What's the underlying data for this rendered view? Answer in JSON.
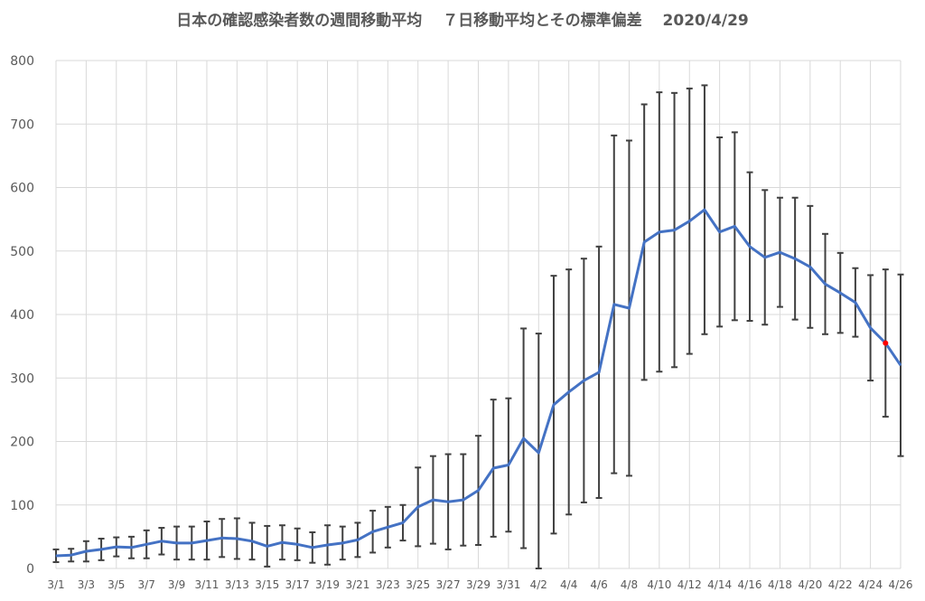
{
  "chart_data": {
    "type": "line",
    "title": "日本の確認感染者数の週間移動平均　 ７日移動平均とその標準偏差　 2020/4/29",
    "xlabel": "",
    "ylabel": "",
    "ylim": [
      0,
      800
    ],
    "yticks": [
      0,
      100,
      200,
      300,
      400,
      500,
      600,
      700,
      800
    ],
    "grid": true,
    "legend": "none",
    "x_tick_labels": [
      "3/1",
      "3/3",
      "3/5",
      "3/7",
      "3/9",
      "3/11",
      "3/13",
      "3/15",
      "3/17",
      "3/19",
      "3/21",
      "3/23",
      "3/25",
      "3/27",
      "3/29",
      "3/31",
      "4/2",
      "4/4",
      "4/6",
      "4/8",
      "4/10",
      "4/12",
      "4/14",
      "4/16",
      "4/18",
      "4/20",
      "4/22",
      "4/24",
      "4/26"
    ],
    "x": [
      "3/1",
      "3/2",
      "3/3",
      "3/4",
      "3/5",
      "3/6",
      "3/7",
      "3/8",
      "3/9",
      "3/10",
      "3/11",
      "3/12",
      "3/13",
      "3/14",
      "3/15",
      "3/16",
      "3/17",
      "3/18",
      "3/19",
      "3/20",
      "3/21",
      "3/22",
      "3/23",
      "3/24",
      "3/25",
      "3/26",
      "3/27",
      "3/28",
      "3/29",
      "3/30",
      "3/31",
      "4/1",
      "4/2",
      "4/3",
      "4/4",
      "4/5",
      "4/6",
      "4/7",
      "4/8",
      "4/9",
      "4/10",
      "4/11",
      "4/12",
      "4/13",
      "4/14",
      "4/15",
      "4/16",
      "4/17",
      "4/18",
      "4/19",
      "4/20",
      "4/21",
      "4/22",
      "4/23",
      "4/24",
      "4/25",
      "4/26"
    ],
    "series": [
      {
        "color": "#4472C4",
        "values": [
          20,
          21,
          27,
          30,
          34,
          33,
          38,
          43,
          40,
          40,
          44,
          48,
          47,
          43,
          35,
          41,
          38,
          33,
          37,
          40,
          45,
          58,
          65,
          72,
          97,
          108,
          105,
          108,
          123,
          158,
          163,
          205,
          182,
          258,
          278,
          296,
          309,
          416,
          410,
          514,
          530,
          533,
          547,
          565,
          530,
          539,
          507,
          490,
          498,
          488,
          475,
          448,
          434,
          419,
          379,
          355,
          320
        ],
        "error": [
          10,
          10,
          16,
          17,
          15,
          17,
          22,
          21,
          26,
          26,
          30,
          30,
          32,
          29,
          32,
          27,
          25,
          24,
          31,
          26,
          27,
          33,
          32,
          28,
          62,
          69,
          75,
          72,
          86,
          108,
          105,
          173,
          188,
          203,
          193,
          192,
          198,
          266,
          264,
          217,
          220,
          216,
          209,
          196,
          149,
          148,
          117,
          106,
          86,
          96,
          96,
          79,
          63,
          54,
          83,
          116,
          143
        ]
      }
    ],
    "highlight_point": {
      "x": "4/25",
      "y": 355,
      "color": "#FF0000"
    },
    "errorbar_color": "#404040",
    "grid_color": "#D9D9D9"
  }
}
